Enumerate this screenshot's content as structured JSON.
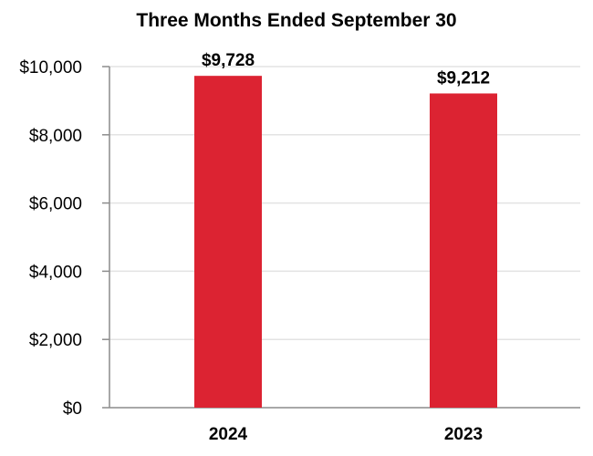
{
  "chart_data": {
    "type": "bar",
    "title": "Three Months Ended September 30",
    "xlabel": "",
    "ylabel": "",
    "categories": [
      "2024",
      "2023"
    ],
    "values": [
      9728,
      9212
    ],
    "value_labels": [
      "$9,728",
      "$9,212"
    ],
    "ylim": [
      0,
      10000
    ],
    "yticks": [
      0,
      2000,
      4000,
      6000,
      8000,
      10000
    ],
    "ytick_labels": [
      "$0",
      "$2,000",
      "$4,000",
      "$6,000",
      "$8,000",
      "$10,000"
    ],
    "grid": true,
    "legend": "none",
    "colors": {
      "bar": "#DC2332",
      "grid": "#E3E3E3",
      "axis": "#8C8C8C"
    }
  }
}
